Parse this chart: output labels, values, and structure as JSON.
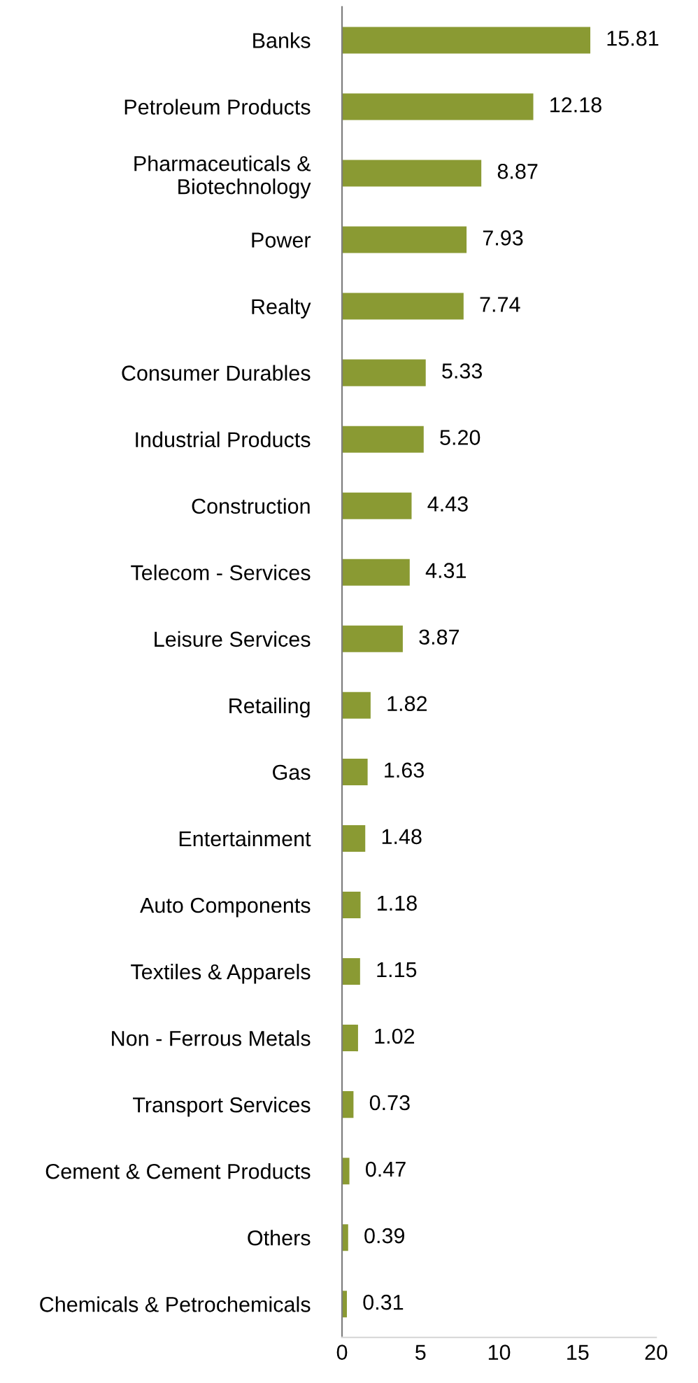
{
  "chart_data": {
    "type": "bar",
    "orientation": "horizontal",
    "categories": [
      "Banks",
      "Petroleum Products",
      "Pharmaceuticals &\nBiotechnology",
      "Power",
      "Realty",
      "Consumer Durables",
      "Industrial Products",
      "Construction",
      "Telecom - Services",
      "Leisure Services",
      "Retailing",
      "Gas",
      "Entertainment",
      "Auto Components",
      "Textiles & Apparels",
      "Non - Ferrous Metals",
      "Transport Services",
      "Cement & Cement Products",
      "Others",
      "Chemicals & Petrochemicals"
    ],
    "values": [
      15.81,
      12.18,
      8.87,
      7.93,
      7.74,
      5.33,
      5.2,
      4.43,
      4.31,
      3.87,
      1.82,
      1.63,
      1.48,
      1.18,
      1.15,
      1.02,
      0.73,
      0.47,
      0.39,
      0.31
    ],
    "value_labels": [
      "15.81",
      "12.18",
      "8.87",
      "7.93",
      "7.74",
      "5.33",
      "5.20",
      "4.43",
      "4.31",
      "3.87",
      "1.82",
      "1.63",
      "1.48",
      "1.18",
      "1.15",
      "1.02",
      "0.73",
      "0.47",
      "0.39",
      "0.31"
    ],
    "color": "#8a9a33",
    "xlim": [
      0,
      20
    ],
    "xticks": [
      0,
      5,
      10,
      15,
      20
    ],
    "grid": false,
    "legend": false
  }
}
